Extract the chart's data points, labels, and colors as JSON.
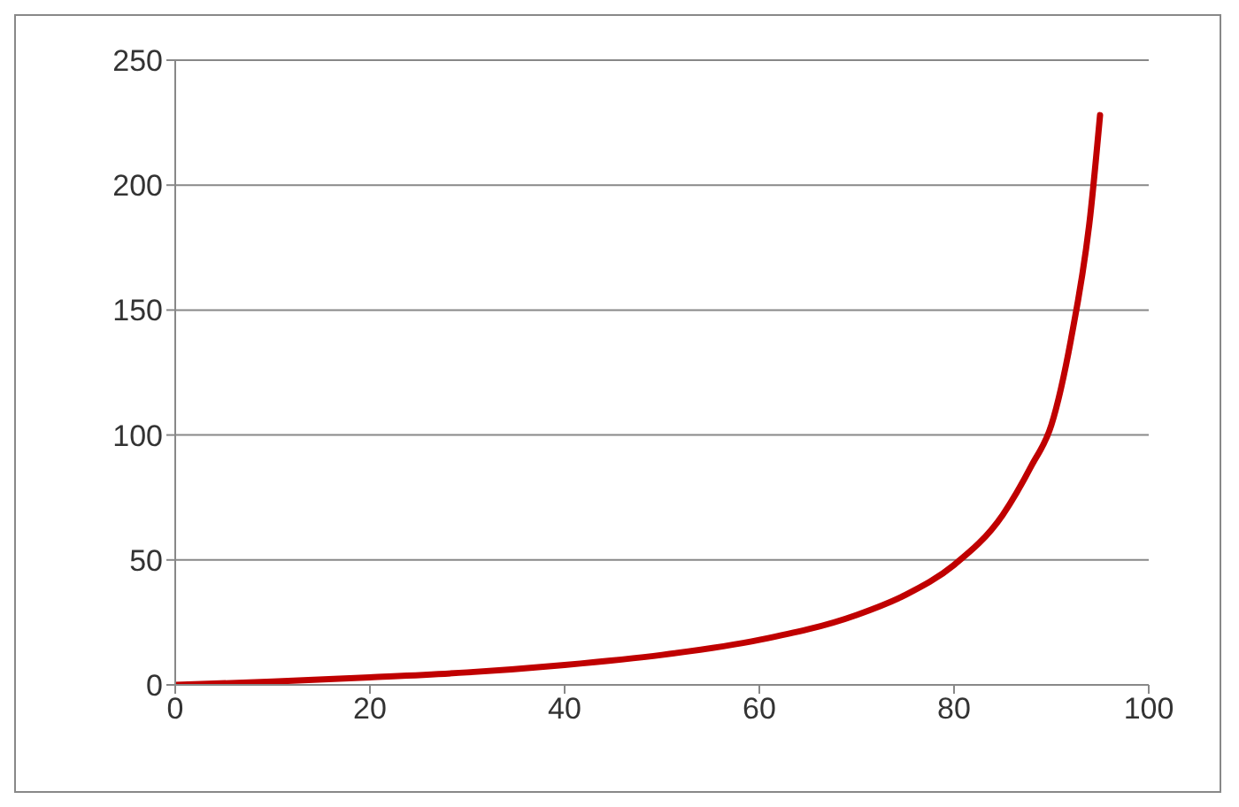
{
  "chart_data": {
    "type": "line",
    "x": [
      0,
      10,
      20,
      30,
      40,
      50,
      60,
      70,
      75,
      80,
      85,
      88,
      90,
      92,
      94,
      95
    ],
    "series": [
      {
        "color": "#c00000",
        "values": [
          0,
          1.3,
          3,
          5,
          8,
          12,
          18,
          28,
          36,
          48,
          68,
          88,
          104,
          138,
          188,
          228
        ]
      }
    ],
    "xlim": [
      0,
      100
    ],
    "xticks": [
      0,
      20,
      40,
      60,
      80,
      100
    ],
    "ylim": [
      0,
      250
    ],
    "yticks": [
      0,
      50,
      100,
      150,
      200,
      250
    ],
    "grid": "y",
    "legend": false,
    "marker": "none",
    "line_style": "solid"
  }
}
